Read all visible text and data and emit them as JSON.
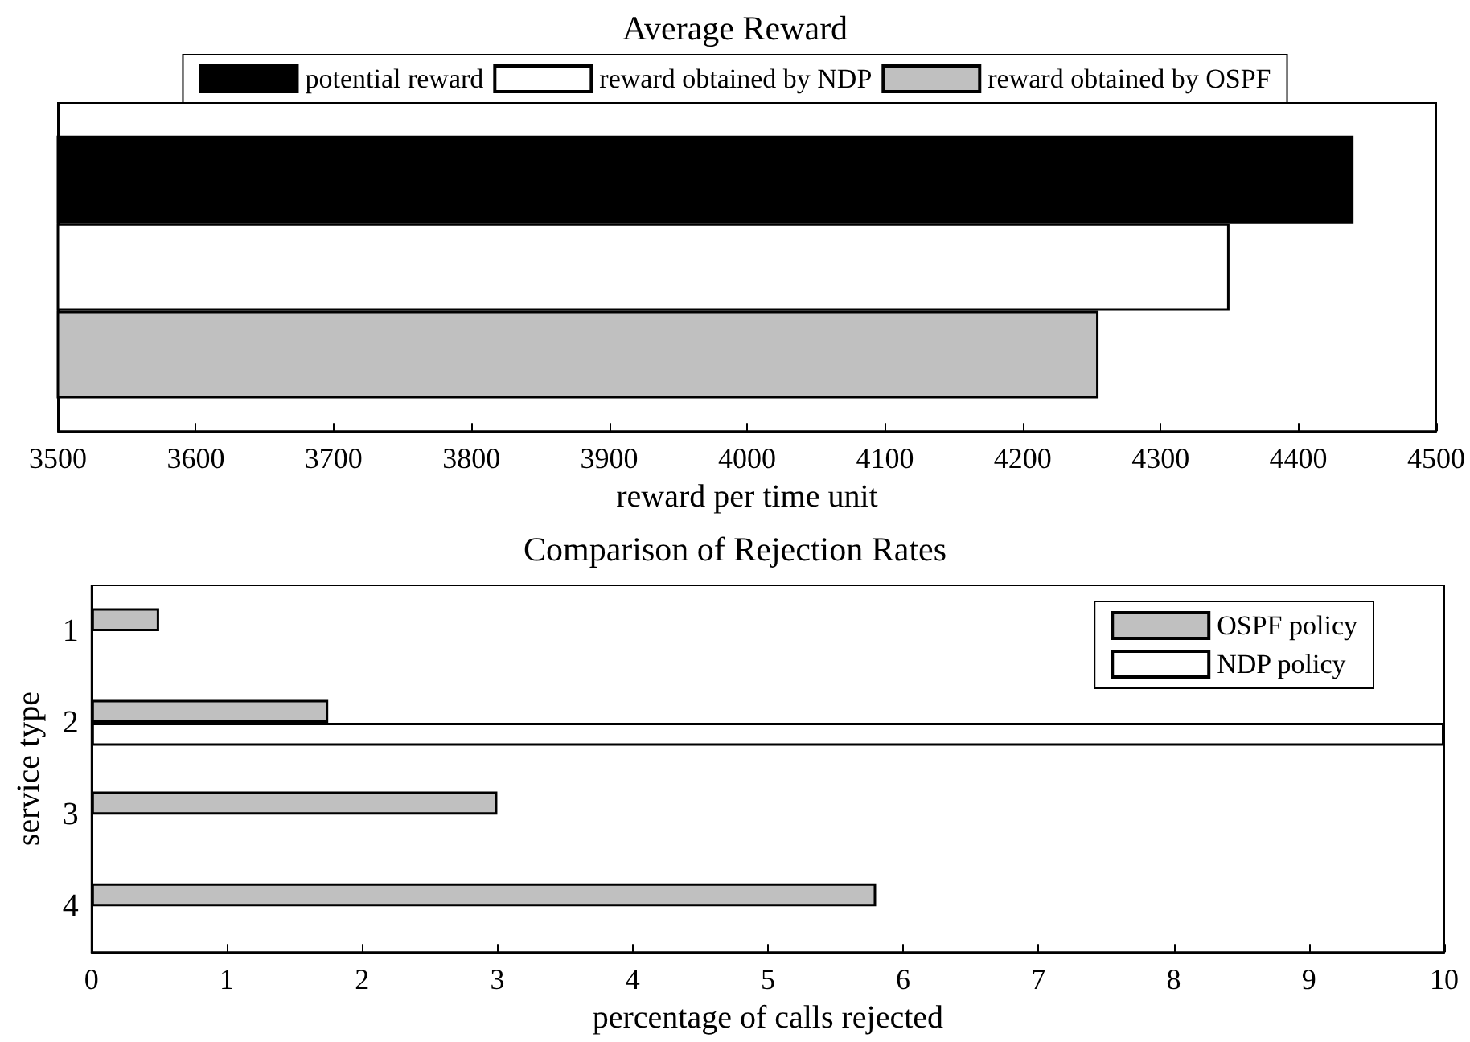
{
  "chart_data": [
    {
      "type": "bar",
      "orientation": "horizontal",
      "title": "Average Reward",
      "xlabel": "reward per time unit",
      "categories": [
        null
      ],
      "legend": "top",
      "xlim": [
        3500,
        4500
      ],
      "xticks": [
        3500,
        3600,
        3700,
        3800,
        3900,
        4000,
        4100,
        4200,
        4300,
        4400,
        4500
      ],
      "series": [
        {
          "name": "potential reward",
          "color": "#000000",
          "values": [
            4440
          ]
        },
        {
          "name": "reward obtained by NDP",
          "color": "#ffffff",
          "values": [
            4350
          ]
        },
        {
          "name": "reward obtained by OSPF",
          "color": "#c0c0c0",
          "values": [
            4255
          ]
        }
      ]
    },
    {
      "type": "bar",
      "orientation": "horizontal",
      "title": "Comparison of Rejection Rates",
      "xlabel": "percentage of calls rejected",
      "ylabel": "service type",
      "categories": [
        "1",
        "2",
        "3",
        "4"
      ],
      "legend": "top right",
      "xlim": [
        0,
        10
      ],
      "xticks": [
        0,
        1,
        2,
        3,
        4,
        5,
        6,
        7,
        8,
        9,
        10
      ],
      "series": [
        {
          "name": "OSPF policy",
          "color": "#c0c0c0",
          "values": [
            0.5,
            1.75,
            3.0,
            5.8
          ]
        },
        {
          "name": "NDP policy",
          "color": "#ffffff",
          "values": [
            null,
            10,
            null,
            null
          ]
        }
      ]
    }
  ]
}
